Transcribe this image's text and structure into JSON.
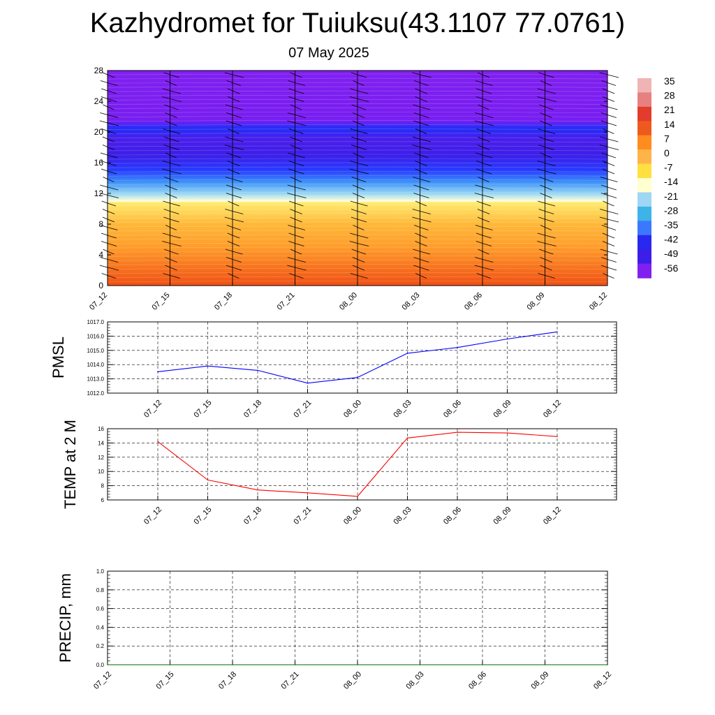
{
  "title": "Kazhydromet for Tuiuksu(43.1107 77.0761)",
  "subtitle": "07 May 2025",
  "chart_data": [
    {
      "type": "heatmap",
      "name": "cross-section",
      "x_ticks": [
        "07_12",
        "07_15",
        "07_18",
        "07_21",
        "08_00",
        "08_03",
        "08_06",
        "08_09",
        "08_12"
      ],
      "y_ticks": [
        "0",
        "4",
        "8",
        "12",
        "16",
        "20",
        "24",
        "28"
      ],
      "ylim": [
        0,
        28
      ],
      "colorbar_labels": [
        "35",
        "28",
        "21",
        "14",
        "7",
        "0",
        "-7",
        "-14",
        "-21",
        "-28",
        "-35",
        "-42",
        "-49",
        "-56"
      ],
      "colorbar_colors": [
        "#f0b4b4",
        "#e88080",
        "#e23c2c",
        "#ee5a1e",
        "#ff8c1e",
        "#ffb44a",
        "#ffe040",
        "#ffffd0",
        "#9fd6f4",
        "#3cb4e8",
        "#3c78ff",
        "#2828f0",
        "#3c1ee8",
        "#8020f0"
      ],
      "temperature_profile": [
        {
          "h": 0,
          "t": 14
        },
        {
          "h": 2,
          "t": 11
        },
        {
          "h": 5,
          "t": 6
        },
        {
          "h": 8,
          "t": 1
        },
        {
          "h": 10.8,
          "t": -6
        },
        {
          "h": 11,
          "t": -14
        },
        {
          "h": 12,
          "t": -21
        },
        {
          "h": 13.5,
          "t": -33
        },
        {
          "h": 15,
          "t": -42
        },
        {
          "h": 17,
          "t": -52
        },
        {
          "h": 19,
          "t": -53
        },
        {
          "h": 20.5,
          "t": -45
        },
        {
          "h": 21.5,
          "t": -56
        },
        {
          "h": 28,
          "t": -60
        }
      ]
    },
    {
      "type": "line",
      "ylabel": "PMSL",
      "categories": [
        "07_12",
        "07_15",
        "07_18",
        "07_21",
        "08_00",
        "08_03",
        "08_06",
        "08_09",
        "08_12"
      ],
      "values": [
        1013.5,
        1013.9,
        1013.6,
        1012.7,
        1013.1,
        1014.8,
        1015.2,
        1015.8,
        1016.3
      ],
      "ylim": [
        1012.0,
        1017.0
      ],
      "y_ticks": [
        "1012.0",
        "1013.0",
        "1014.0",
        "1015.0",
        "1016.0",
        "1017.0"
      ],
      "color": "#0000ff",
      "grid": true
    },
    {
      "type": "line",
      "ylabel": "TEMP at 2 M",
      "categories": [
        "07_12",
        "07_15",
        "07_18",
        "07_21",
        "08_00",
        "08_03",
        "08_06",
        "08_09",
        "08_12"
      ],
      "values": [
        14.2,
        8.8,
        7.4,
        7.0,
        6.5,
        14.7,
        15.5,
        15.4,
        14.9
      ],
      "ylim": [
        6,
        16
      ],
      "y_ticks": [
        "6",
        "8",
        "10",
        "12",
        "14",
        "16"
      ],
      "color": "#ff0000",
      "grid": true
    },
    {
      "type": "line",
      "ylabel": "PRECIP, mm",
      "categories": [
        "07_12",
        "07_15",
        "07_18",
        "07_21",
        "08_00",
        "08_03",
        "08_06",
        "08_09",
        "08_12"
      ],
      "values": [
        0,
        0,
        0,
        0,
        0,
        0,
        0,
        0,
        0
      ],
      "ylim": [
        0,
        1.0
      ],
      "y_ticks": [
        "0.0",
        "0.2",
        "0.4",
        "0.6",
        "0.8",
        "1.0"
      ],
      "color": "#006400",
      "grid": true
    }
  ]
}
